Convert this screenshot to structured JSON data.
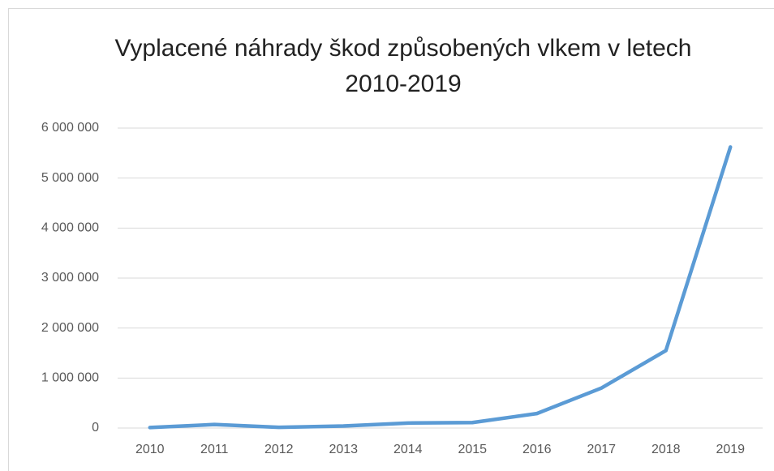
{
  "chart_data": {
    "type": "line",
    "title": "Vyplacené náhrady škod způsobených vlkem v letech 2010-2019",
    "categories": [
      "2010",
      "2011",
      "2012",
      "2013",
      "2014",
      "2015",
      "2016",
      "2017",
      "2018",
      "2019"
    ],
    "series": [
      {
        "name": "Vyplacené náhrady",
        "color": "#5b9bd5",
        "values": [
          10000,
          70000,
          15000,
          40000,
          100000,
          110000,
          290000,
          800000,
          1550000,
          5620000
        ]
      }
    ],
    "ylim": [
      0,
      6000000
    ],
    "yticks": [
      0,
      {
        "value": 1000000,
        "label": "1 000 000"
      },
      {
        "value": 2000000,
        "label": "2 000 000"
      },
      {
        "value": 3000000,
        "label": "3 000 000"
      },
      {
        "value": 4000000,
        "label": "4 000 000"
      },
      {
        "value": 5000000,
        "label": "5 000 000"
      },
      {
        "value": 6000000,
        "label": "6 000 000"
      }
    ],
    "grid": true
  }
}
